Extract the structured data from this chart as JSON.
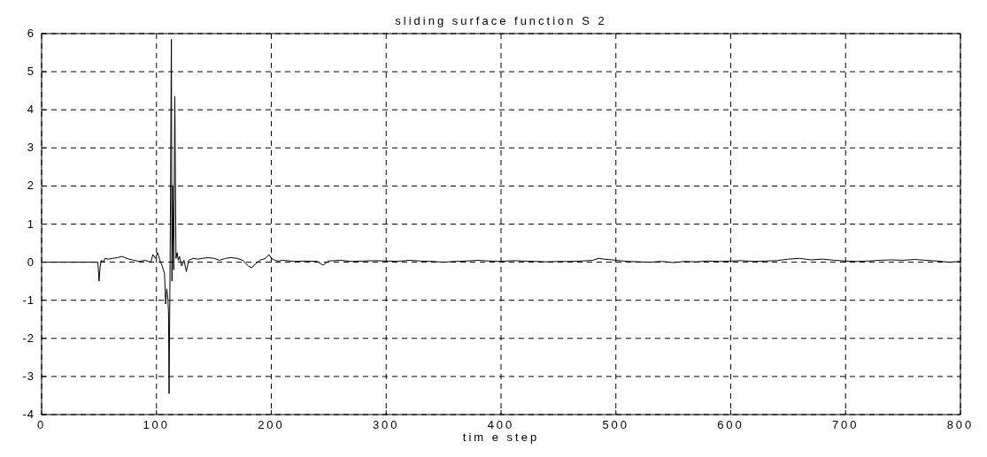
{
  "chart_data": {
    "type": "line",
    "title": "sliding surface function S 2",
    "xlabel": "tim e step",
    "xlim": [
      0,
      800
    ],
    "xticks": [
      0,
      100,
      200,
      300,
      400,
      500,
      600,
      700,
      800
    ],
    "ylim": [
      -4,
      6
    ],
    "yticks": [
      -4,
      -3,
      -2,
      -1,
      0,
      1,
      2,
      3,
      4,
      5,
      6
    ],
    "grid": true,
    "series": [
      {
        "color": "#000000",
        "x": [
          0,
          49,
          50,
          51,
          52,
          54,
          55,
          58,
          62,
          66,
          70,
          74,
          80,
          85,
          90,
          95,
          97,
          99,
          101,
          103,
          105,
          107,
          108,
          109,
          110,
          110.5,
          111,
          112,
          112.5,
          113,
          113.5,
          114,
          115,
          116,
          117,
          118,
          119,
          120,
          122,
          124,
          126,
          128,
          132,
          136,
          140,
          145,
          150,
          155,
          160,
          165,
          170,
          175,
          180,
          183,
          186,
          190,
          195,
          198,
          200,
          203,
          206,
          210,
          220,
          230,
          240,
          245,
          250,
          260,
          270,
          280,
          290,
          300,
          310,
          320,
          330,
          340,
          350,
          360,
          370,
          380,
          390,
          400,
          410,
          420,
          430,
          440,
          450,
          460,
          470,
          480,
          485,
          490,
          500,
          510,
          520,
          530,
          540,
          550,
          560,
          570,
          580,
          590,
          600,
          610,
          620,
          630,
          640,
          650,
          660,
          670,
          680,
          690,
          700,
          710,
          720,
          730,
          740,
          750,
          760,
          770,
          780,
          790,
          800
        ],
        "values": [
          0,
          0,
          -0.5,
          -0.1,
          0.05,
          0,
          0.1,
          0.08,
          0.1,
          0.12,
          0.15,
          0.1,
          0.05,
          0.02,
          0.05,
          0,
          0.2,
          0.1,
          0.25,
          0.05,
          -0.1,
          -0.3,
          -1.1,
          -0.7,
          -1,
          -1.3,
          -3.45,
          0.5,
          3.4,
          5.85,
          -0.5,
          2,
          -0.2,
          4.35,
          0.1,
          0.25,
          0.05,
          0.15,
          -0.1,
          0.05,
          -0.25,
          0.05,
          0.1,
          0.08,
          0.1,
          0.12,
          0.1,
          0.05,
          0.1,
          0.12,
          0.1,
          0.05,
          -0.1,
          -0.15,
          -0.05,
          0.05,
          0.1,
          0.2,
          0.1,
          0.05,
          0.03,
          0.05,
          0.02,
          0.03,
          0.02,
          -0.08,
          0.03,
          0.05,
          0.02,
          0.03,
          0.04,
          0.03,
          0.02,
          0.05,
          0.03,
          0.02,
          0,
          0.02,
          0.03,
          0.05,
          0.03,
          0.02,
          0.04,
          0.03,
          0.02,
          0.01,
          0.02,
          0.02,
          0.03,
          0.05,
          0.1,
          0.08,
          0.05,
          0.02,
          0.01,
          0,
          0.02,
          -0.01,
          0.02,
          0.01,
          0.03,
          0.02,
          0.03,
          0.04,
          0.02,
          0.03,
          0.04,
          0.08,
          0.1,
          0.06,
          0.08,
          0.05,
          0.03,
          0.02,
          0.03,
          0.05,
          0.06,
          0.05,
          0.07,
          0.05,
          0.03,
          0,
          0.02
        ]
      }
    ]
  }
}
